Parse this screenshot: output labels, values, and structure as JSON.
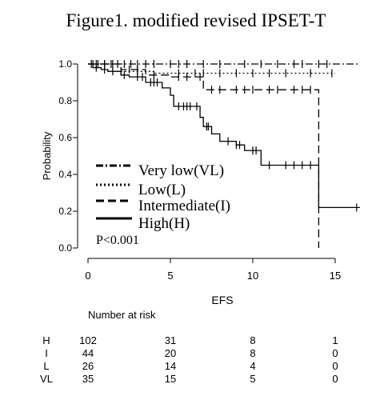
{
  "chart_data": {
    "type": "line",
    "title": "Figure1. modified revised IPSET-T",
    "xlabel": "EFS",
    "ylabel": "Probability",
    "xlim": [
      0,
      16.5
    ],
    "ylim": [
      0,
      1.0
    ],
    "xticks": [
      "0",
      "5",
      "10",
      "15"
    ],
    "yticks": [
      "0.0",
      "0.2",
      "0.4",
      "0.6",
      "0.8",
      "1.0"
    ],
    "grid": false,
    "legend_placement": "bottom-left",
    "annotation": "P<0.001",
    "series": [
      {
        "name": "Very low(VL)",
        "line_style": "dashdot",
        "steps": [
          [
            0,
            1.0
          ],
          [
            16.5,
            1.0
          ]
        ],
        "censor_x": [
          0.3,
          0.6,
          1.0,
          1.4,
          1.8,
          2.2,
          2.6,
          3.0,
          3.5,
          4.0,
          5.0,
          5.5,
          6.0,
          7.0,
          8.0,
          9.5,
          10.5,
          11.5,
          12.5,
          13.0,
          14.0,
          14.5
        ]
      },
      {
        "name": "Low(L)",
        "line_style": "dotted",
        "steps": [
          [
            0,
            1.0
          ],
          [
            1.5,
            0.96
          ],
          [
            4.0,
            0.96
          ],
          [
            4.0,
            0.95
          ],
          [
            15.0,
            0.95
          ]
        ],
        "censor_x": [
          0.5,
          1.0,
          2.0,
          3.0,
          5.5,
          6.5,
          7.0,
          8.0,
          9.0,
          10.0,
          11.0,
          12.0,
          13.5,
          14.8
        ]
      },
      {
        "name": "Intermediate(I)",
        "line_style": "dashed",
        "steps": [
          [
            0,
            1.0
          ],
          [
            2.0,
            0.97
          ],
          [
            3.5,
            0.94
          ],
          [
            5.0,
            0.93
          ],
          [
            7.0,
            0.86
          ],
          [
            14.0,
            0.86
          ],
          [
            14.0,
            0.0
          ]
        ],
        "censor_x": [
          1.0,
          1.5,
          2.5,
          3.0,
          4.0,
          5.5,
          6.0,
          6.8,
          7.5,
          8.0,
          9.0,
          9.5,
          10.0,
          11.0,
          11.5,
          12.5,
          13.0,
          13.5
        ]
      },
      {
        "name": "High(H)",
        "line_style": "solid",
        "steps": [
          [
            0,
            1.0
          ],
          [
            0.3,
            0.98
          ],
          [
            0.8,
            0.97
          ],
          [
            1.2,
            0.96
          ],
          [
            2.0,
            0.94
          ],
          [
            2.5,
            0.93
          ],
          [
            3.5,
            0.9
          ],
          [
            4.5,
            0.87
          ],
          [
            5.0,
            0.83
          ],
          [
            5.2,
            0.77
          ],
          [
            6.8,
            0.71
          ],
          [
            7.0,
            0.66
          ],
          [
            7.5,
            0.62
          ],
          [
            8.0,
            0.58
          ],
          [
            9.0,
            0.56
          ],
          [
            9.5,
            0.53
          ],
          [
            10.5,
            0.45
          ],
          [
            14.0,
            0.45
          ],
          [
            14.0,
            0.22
          ],
          [
            16.5,
            0.22
          ]
        ],
        "censor_x": [
          0.2,
          0.5,
          1.0,
          1.5,
          2.2,
          3.0,
          3.3,
          3.8,
          4.0,
          4.2,
          5.5,
          5.8,
          6.0,
          6.2,
          6.6,
          7.2,
          7.3,
          8.5,
          9.0,
          9.2,
          10.0,
          10.2,
          11.0,
          12.0,
          12.5,
          13.0,
          13.5,
          16.3
        ]
      }
    ],
    "risk_table": {
      "title": "Number at risk",
      "columns_x": [
        0,
        5,
        10,
        15
      ],
      "rows": [
        {
          "label": "H",
          "values": [
            "102",
            "31",
            "8",
            "1"
          ]
        },
        {
          "label": "I",
          "values": [
            "44",
            "20",
            "8",
            "0"
          ]
        },
        {
          "label": "L",
          "values": [
            "26",
            "14",
            "4",
            "0"
          ]
        },
        {
          "label": "VL",
          "values": [
            "35",
            "15",
            "5",
            "0"
          ]
        }
      ]
    }
  }
}
